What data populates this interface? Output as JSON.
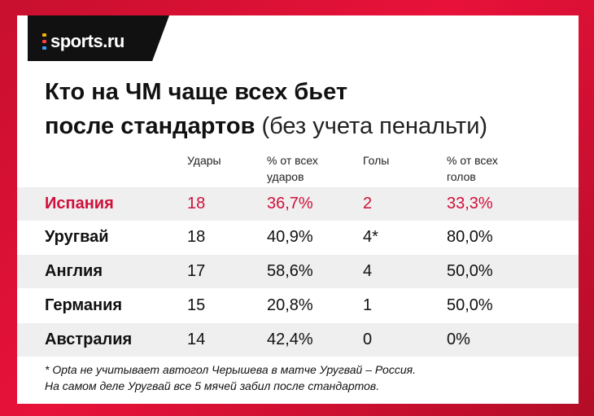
{
  "brand": {
    "logo_text": "sports.ru",
    "dot_colors": [
      "#f5b400",
      "#ff3b3b",
      "#3aa0ff",
      "#2bd66b"
    ]
  },
  "title": {
    "line1": "Кто на ЧМ чаще всех бьет",
    "line2_bold": "после стандартов",
    "line2_light": "(без учета пенальти)"
  },
  "table": {
    "headers": {
      "shots": "Удары",
      "shots_pct_1": "% от всех",
      "shots_pct_2": "ударов",
      "goals": "Голы",
      "goals_pct_1": "% от всех",
      "goals_pct_2": "голов"
    },
    "rows": [
      {
        "team": "Испания",
        "shots": "18",
        "shots_pct": "36,7%",
        "goals": "2",
        "goals_pct": "33,3%"
      },
      {
        "team": "Уругвай",
        "shots": "18",
        "shots_pct": "40,9%",
        "goals": "4*",
        "goals_pct": "80,0%"
      },
      {
        "team": "Англия",
        "shots": "17",
        "shots_pct": "58,6%",
        "goals": "4",
        "goals_pct": "50,0%"
      },
      {
        "team": "Германия",
        "shots": "15",
        "shots_pct": "20,8%",
        "goals": "1",
        "goals_pct": "50,0%"
      },
      {
        "team": "Австралия",
        "shots": "14",
        "shots_pct": "42,4%",
        "goals": "0",
        "goals_pct": "0%"
      }
    ]
  },
  "footnote": {
    "line1": "* Opta не учитывает автогол Черышева в матче Уругвай – Россия.",
    "line2": "На самом деле Уругвай все 5 мячей забил после стандартов."
  },
  "colors": {
    "accent": "#d0103a",
    "row_shade": "#efefef",
    "background_red": "#e8113a"
  }
}
